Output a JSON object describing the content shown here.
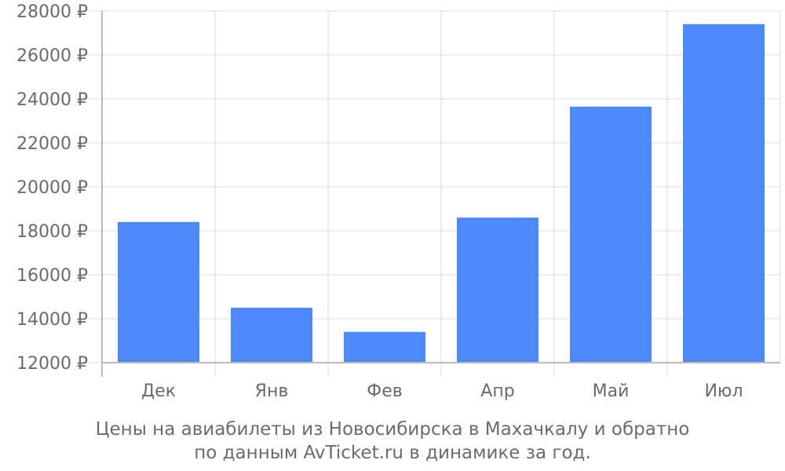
{
  "chart_data": {
    "type": "bar",
    "categories": [
      "Дек",
      "Янв",
      "Фев",
      "Апр",
      "Май",
      "Июл"
    ],
    "values": [
      18400,
      14500,
      13400,
      18600,
      23650,
      27400
    ],
    "y_ticks": [
      12000,
      14000,
      16000,
      18000,
      20000,
      22000,
      24000,
      26000,
      28000
    ],
    "y_tick_labels": [
      "12000 ₽",
      "14000 ₽",
      "16000 ₽",
      "18000 ₽",
      "20000 ₽",
      "22000 ₽",
      "24000 ₽",
      "26000 ₽",
      "28000 ₽"
    ],
    "ylim": [
      12000,
      28000
    ],
    "grid": true,
    "title": "",
    "xlabel": "",
    "ylabel": "",
    "bar_color": "#4d89f9",
    "grid_color": "#dddddd",
    "axis_color": "#bbbbbb",
    "text_color": "#6b6b6b"
  },
  "caption": {
    "line1": "Цены на авиабилеты из Новосибирска в Махачкалу и обратно",
    "line2": "по данным AvTicket.ru в динамике за год."
  }
}
